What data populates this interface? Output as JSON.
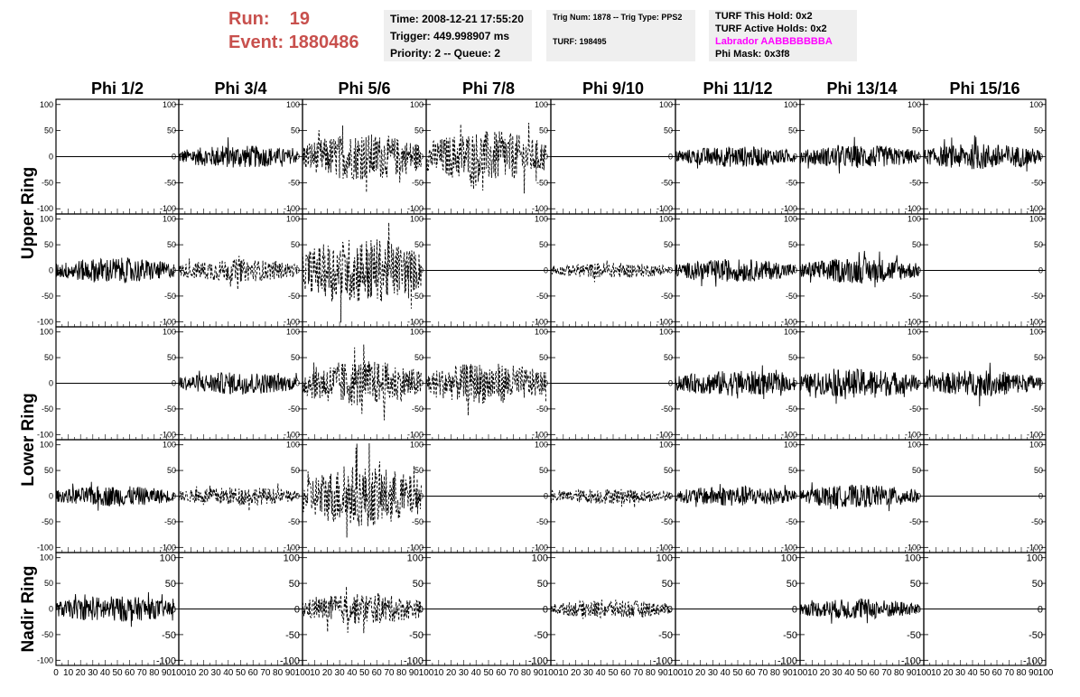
{
  "header": {
    "run_label": "Run:",
    "run_value": "19",
    "event_label": "Event:",
    "event_value": "1880486"
  },
  "info_time": {
    "time": "Time: 2008-12-21 17:55:20",
    "trigger": "Trigger: 449.998907 ms",
    "priority": "Priority: 2 -- Queue: 2"
  },
  "info_trig": {
    "line1": "Trig Num: 1878 -- Trig Type: PPS2",
    "line2": "TURF: 198495"
  },
  "info_turf": {
    "this_hold": "TURF This Hold: 0x2",
    "active_holds": "TURF Active Holds: 0x2",
    "labrador": "Labrador AABBBBBBBA",
    "phi_mask": "Phi Mask: 0x3f8"
  },
  "colors": {
    "header_red": "#c8504d",
    "labrador_magenta": "#ff00ff",
    "info_bg": "#efefef"
  },
  "chart_data": {
    "type": "line",
    "columns": [
      "Phi 1/2",
      "Phi 3/4",
      "Phi 5/6",
      "Phi 7/8",
      "Phi 9/10",
      "Phi 11/12",
      "Phi 13/14",
      "Phi 15/16"
    ],
    "ring_labels": [
      {
        "label": "Upper Ring",
        "rows": [
          0,
          1
        ]
      },
      {
        "label": "Lower Ring",
        "rows": [
          2,
          3
        ]
      },
      {
        "label": "Nadir Ring",
        "rows": [
          4,
          4
        ]
      }
    ],
    "xlim": [
      0,
      100
    ],
    "ylim": [
      -110,
      110
    ],
    "x_ticks": [
      0,
      10,
      20,
      30,
      40,
      50,
      60,
      70,
      80,
      90,
      100
    ],
    "y_ticks": [
      100,
      50,
      0,
      -50,
      -100
    ],
    "panels": [
      [
        {
          "amp": 0,
          "style": "flat"
        },
        {
          "amp": 22,
          "style": "solid"
        },
        {
          "amp": 45,
          "style": "dashed"
        },
        {
          "amp": 50,
          "style": "dashed"
        },
        {
          "amp": 0,
          "style": "flat"
        },
        {
          "amp": 20,
          "style": "solid"
        },
        {
          "amp": 22,
          "style": "solid"
        },
        {
          "amp": 25,
          "style": "solid"
        }
      ],
      [
        {
          "amp": 25,
          "style": "solid"
        },
        {
          "amp": 22,
          "style": "dashed"
        },
        {
          "amp": 65,
          "style": "dashed"
        },
        {
          "amp": 0,
          "style": "flat"
        },
        {
          "amp": 15,
          "style": "dashed"
        },
        {
          "amp": 22,
          "style": "solid"
        },
        {
          "amp": 25,
          "style": "solid"
        },
        {
          "amp": 0,
          "style": "flat"
        }
      ],
      [
        {
          "amp": 0,
          "style": "flat"
        },
        {
          "amp": 22,
          "style": "solid"
        },
        {
          "amp": 45,
          "style": "dashed"
        },
        {
          "amp": 40,
          "style": "dashed"
        },
        {
          "amp": 0,
          "style": "flat"
        },
        {
          "amp": 25,
          "style": "solid"
        },
        {
          "amp": 28,
          "style": "solid"
        },
        {
          "amp": 25,
          "style": "solid"
        }
      ],
      [
        {
          "amp": 20,
          "style": "solid"
        },
        {
          "amp": 18,
          "style": "dashed"
        },
        {
          "amp": 60,
          "style": "dashed"
        },
        {
          "amp": 0,
          "style": "flat"
        },
        {
          "amp": 15,
          "style": "dashed"
        },
        {
          "amp": 20,
          "style": "solid"
        },
        {
          "amp": 22,
          "style": "solid"
        },
        {
          "amp": 0,
          "style": "flat"
        }
      ],
      [
        {
          "amp": 25,
          "style": "solid"
        },
        {
          "amp": 0,
          "style": "flat"
        },
        {
          "amp": 30,
          "style": "dashed"
        },
        {
          "amp": 0,
          "style": "flat"
        },
        {
          "amp": 18,
          "style": "dashed"
        },
        {
          "amp": 0,
          "style": "flat"
        },
        {
          "amp": 20,
          "style": "solid"
        },
        {
          "amp": 0,
          "style": "flat"
        }
      ]
    ]
  }
}
